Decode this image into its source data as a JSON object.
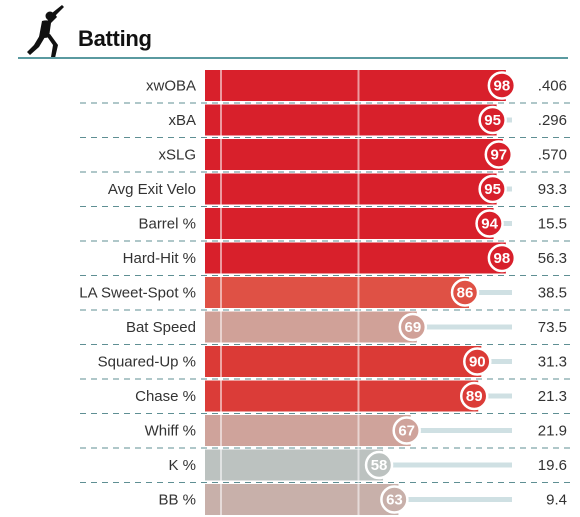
{
  "header": {
    "title": "Batting",
    "icon": "batter-silhouette-icon"
  },
  "colors": {
    "accent_rule": "#5a9aa0",
    "track": "#cfe0e3",
    "separator": "#5f8f93"
  },
  "chart_data": {
    "type": "bar",
    "orientation": "horizontal",
    "title": "Batting",
    "xlim": [
      0,
      100
    ],
    "value_kind": "percentile",
    "gridlines": [
      50
    ],
    "rows": [
      {
        "label": "xwOBA",
        "percentile": 98,
        "value": ".406",
        "color": "#d8202b"
      },
      {
        "label": "xBA",
        "percentile": 95,
        "value": ".296",
        "color": "#d8202b"
      },
      {
        "label": "xSLG",
        "percentile": 97,
        "value": ".570",
        "color": "#d8202b"
      },
      {
        "label": "Avg Exit Velo",
        "percentile": 95,
        "value": "93.3",
        "color": "#d8202b"
      },
      {
        "label": "Barrel %",
        "percentile": 94,
        "value": "15.5",
        "color": "#d8202b"
      },
      {
        "label": "Hard-Hit %",
        "percentile": 98,
        "value": "56.3",
        "color": "#d8202b"
      },
      {
        "label": "LA Sweet-Spot %",
        "percentile": 86,
        "value": "38.5",
        "color": "#df5145"
      },
      {
        "label": "Bat Speed",
        "percentile": 69,
        "value": "73.5",
        "color": "#d0a198"
      },
      {
        "label": "Squared-Up %",
        "percentile": 90,
        "value": "31.3",
        "color": "#db3a36"
      },
      {
        "label": "Chase %",
        "percentile": 89,
        "value": "21.3",
        "color": "#db3c38"
      },
      {
        "label": "Whiff %",
        "percentile": 67,
        "value": "21.9",
        "color": "#cfa39b"
      },
      {
        "label": "K %",
        "percentile": 58,
        "value": "19.6",
        "color": "#bcc2c0"
      },
      {
        "label": "BB %",
        "percentile": 63,
        "value": "9.4",
        "color": "#c8b0aa"
      }
    ]
  }
}
